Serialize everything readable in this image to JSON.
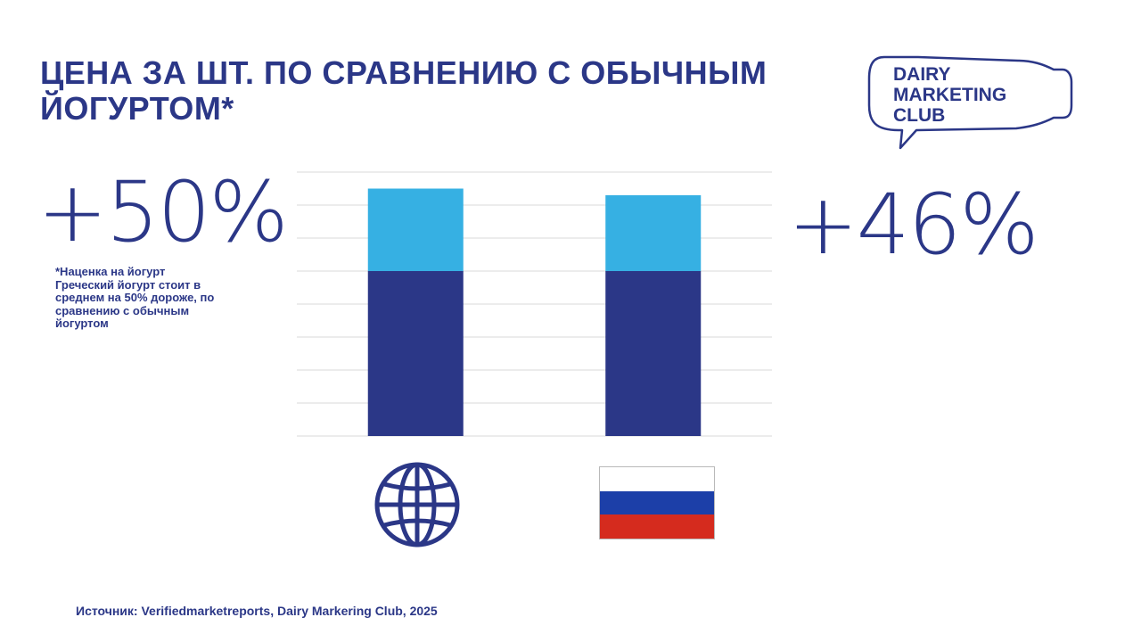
{
  "title": "ЦЕНА ЗА ШТ. ПО СРАВНЕНИЮ С ОБЫЧНЫМ\nЙОГУРТОМ*",
  "logo": {
    "lines": [
      "DAIRY",
      "MARKETING",
      "CLUB"
    ]
  },
  "stats": {
    "left_value": "+50%",
    "right_value": "+46%"
  },
  "note": {
    "lines": [
      "*Наценка на йогурт",
      "Греческий йогурт стоит в",
      "среднем на 50% дороже, по",
      "сравнению с обычным",
      "йогуртом"
    ]
  },
  "source": "Источник: Verifiedmarketreports,  Dairy Markering Club, 2025",
  "colors": {
    "base": "#2b3787",
    "premium": "#36b0e3",
    "flag_white": "#ffffff",
    "flag_blue": "#1c3fa8",
    "flag_red": "#d52b1e"
  },
  "categories_icons": [
    "globe-icon",
    "russia-flag-icon"
  ],
  "chart_data": {
    "type": "bar",
    "stacked": true,
    "categories": [
      "",
      ""
    ],
    "series": [
      {
        "values": [
          100,
          100
        ]
      },
      {
        "values": [
          50,
          46
        ]
      }
    ],
    "ylim": [
      0,
      160
    ],
    "grid": true,
    "legend": "none"
  }
}
